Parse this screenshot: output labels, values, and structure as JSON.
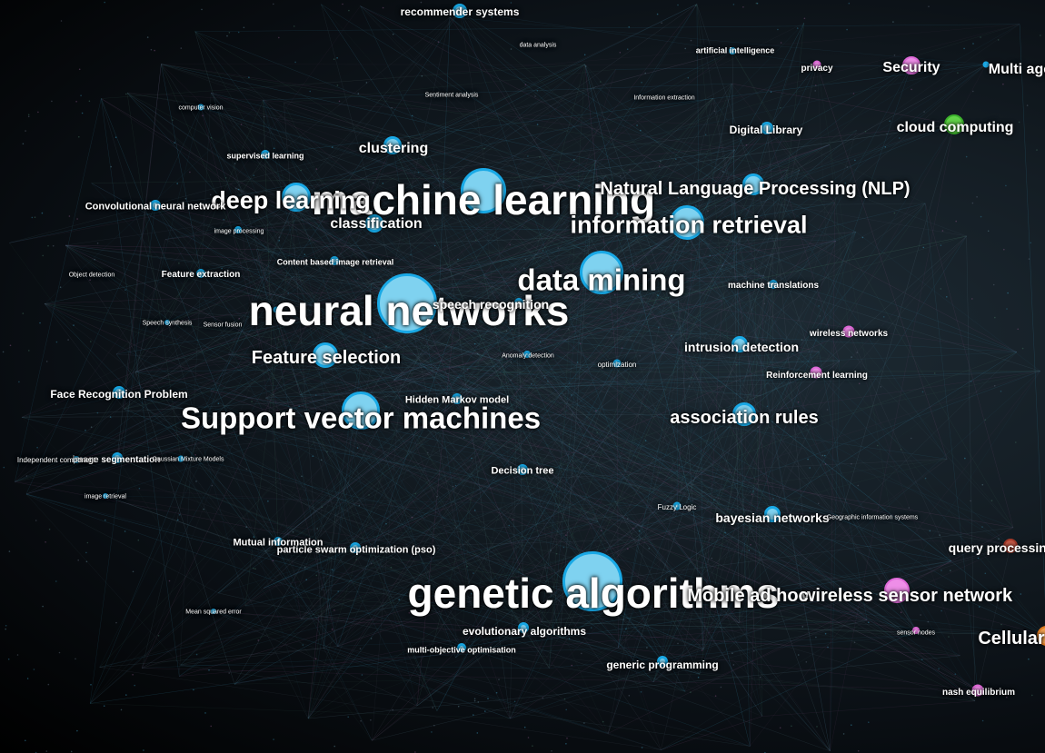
{
  "labels": {
    "genetic_algorithms": "genetic algorithms",
    "neural_networks": "neural networks",
    "machine_learning": "machine learning",
    "data_mining": "data mining",
    "information_retrieval": "information retrieval",
    "support_vector_machines": "Support vector machines",
    "deep_learning": "deep learning",
    "nlp": "Natural Language Processing (NLP)",
    "wireless_sensor_network": "wireless sensor network",
    "mobile_ad_hoc": "Mobile ad hoc",
    "feature_selection": "Feature selection",
    "association_rules": "association rules",
    "classification": "classification",
    "clustering": "clustering",
    "cloud_computing": "cloud computing",
    "security": "Security",
    "multi_agent": "Multi agent",
    "cellular": "Cellular",
    "query_processing": "query processing",
    "intrusion_detection": "intrusion detection",
    "bayesian_networks": "bayesian networks",
    "recommender_systems": "recommender systems",
    "digital_library": "Digital Library",
    "face_recognition": "Face Recognition Problem",
    "hidden_markov": "Hidden Markov model",
    "decision_tree": "Decision tree",
    "evolutionary_algorithms": "evolutionary algorithms",
    "generic_programming": "generic programming",
    "pso": "particle swarm optimization (pso)",
    "mutual_information": "Mutual information",
    "convolutional_nn": "Convolutional neural network",
    "machine_translations": "machine translations",
    "wireless_networks": "wireless networks",
    "reinforcement_learning": "Reinforcement learning",
    "speech_recognition": "speech recognition",
    "feature_extraction": "Feature extraction",
    "content_based_ir": "Content based image retrieval",
    "supervised_learning": "supervised learning",
    "artificial_intelligence": "artificial intelligence",
    "privacy": "privacy",
    "nash_equilibrium": "nash equilibrium",
    "multi_objective": "multi-objective optimisation",
    "image_segmentation": "image segmentation",
    "independent_component": "Independent component",
    "fuzzy_logic": "Fuzzy Logic",
    "optimization": "optimization",
    "anomaly_detection": "Anomaly detection",
    "image_processing": "image processing",
    "computer_vision": "computer vision",
    "data_analysis": "data analysis",
    "sentiment_analysis": "Sentiment analysis",
    "information_extraction": "Information extraction",
    "sensor_nodes": "sensor nodes",
    "geographic_is": "Geographic information systems",
    "gaussian_mixture": "Gaussian Mixture Models",
    "object_detection": "Object detection",
    "speech_synthesis": "Speech synthesis",
    "sensor_fusion": "Sensor fusion",
    "mean_squared_error": "Mean squared error",
    "image_retrieval": "image retrieval"
  },
  "colors": {
    "blue": "#7fd2f0",
    "pink": "#ee8ee8",
    "green": "#63d44a",
    "red": "#c45a48",
    "orange": "#f0a050"
  }
}
